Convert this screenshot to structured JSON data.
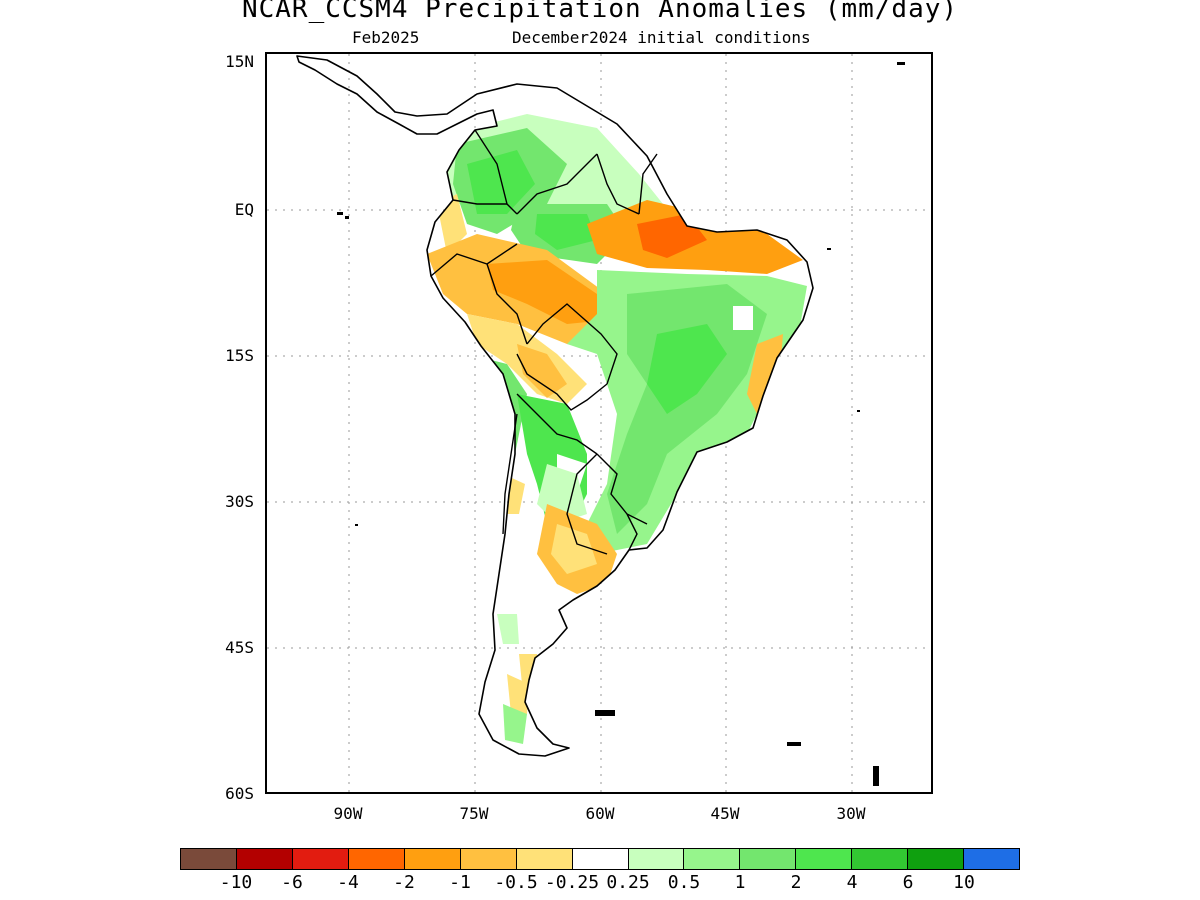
{
  "title": "NCAR_CCSM4 Precipitation Anomalies (mm/day)",
  "subtitle_left": "Feb2025",
  "subtitle_right": "December2024 initial conditions",
  "map": {
    "lat_labels": [
      "15N",
      "EQ",
      "15S",
      "30S",
      "45S",
      "60S"
    ],
    "lon_labels": [
      "90W",
      "75W",
      "60W",
      "45W",
      "30W"
    ],
    "grid": true,
    "region": "South America"
  },
  "colorbar": {
    "colors": [
      "#7a4a3a",
      "#b30000",
      "#e21c10",
      "#ff6600",
      "#ff9f10",
      "#ffc040",
      "#ffe178",
      "#ffffff",
      "#c8ffbe",
      "#96f58c",
      "#73e66e",
      "#4ee64e",
      "#32c832",
      "#0fa00f",
      "#1e6ee6"
    ],
    "labels": [
      "-10",
      "-6",
      "-4",
      "-2",
      "-1",
      "-0.5",
      "-0.25",
      "0.25",
      "0.5",
      "1",
      "2",
      "4",
      "6",
      "10"
    ]
  }
}
